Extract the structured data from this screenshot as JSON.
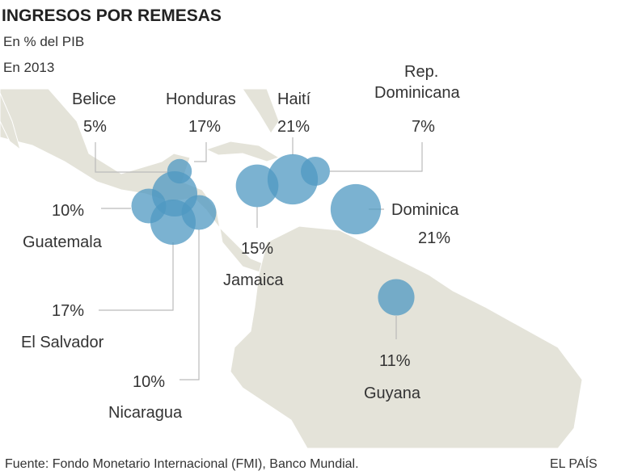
{
  "header": {
    "title": "INGRESOS POR REMESAS",
    "subtitle": "En % del PIB",
    "year": "En 2013"
  },
  "chart_data": {
    "type": "bubble-map",
    "unit": "% del PIB",
    "points": [
      {
        "country": "Belice",
        "value_label": "5%",
        "value": 5
      },
      {
        "country": "Honduras",
        "value_label": "17%",
        "value": 17
      },
      {
        "country": "Haití",
        "value_label": "21%",
        "value": 21
      },
      {
        "country_line1": "Rep.",
        "country": "Dominicana",
        "value_label": "7%",
        "value": 7
      },
      {
        "country": "Guatemala",
        "value_label": "10%",
        "value": 10
      },
      {
        "country": "Dominica",
        "value_label": "21%",
        "value": 21
      },
      {
        "country": "Jamaica",
        "value_label": "15%",
        "value": 15
      },
      {
        "country": "El Salvador",
        "value_label": "17%",
        "value": 17
      },
      {
        "country": "Nicaragua",
        "value_label": "10%",
        "value": 10
      },
      {
        "country": "Guyana",
        "value_label": "11%",
        "value": 11
      }
    ]
  },
  "colors": {
    "bubble": "#4f98c2",
    "land": "#e4e3d9",
    "border": "#ffffff",
    "leader": "#bbbbbb"
  },
  "footer": {
    "source": "Fuente: Fondo Monetario Internacional (FMI), Banco Mundial.",
    "brand": "EL PAÍS"
  }
}
